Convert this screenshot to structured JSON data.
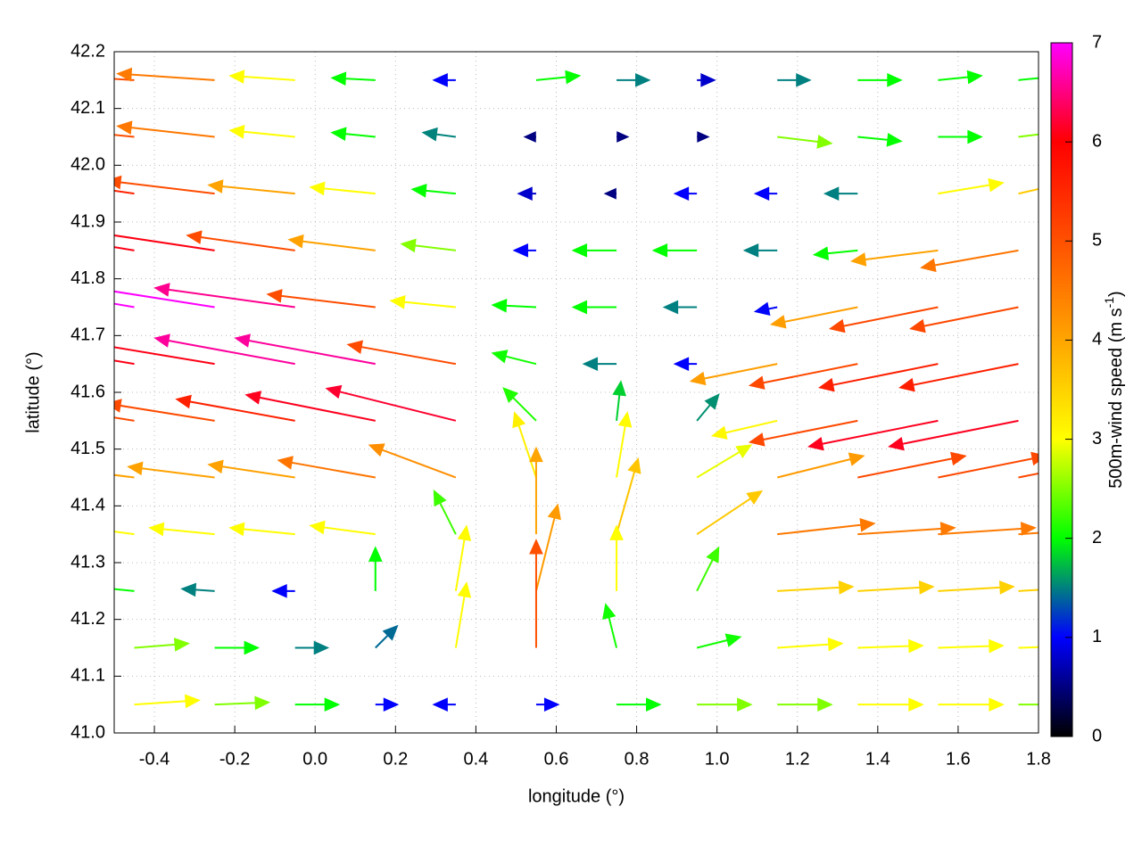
{
  "chart_data": {
    "type": "quiver",
    "xlabel": "longitude (°)",
    "ylabel": "latitude (°)",
    "xlim": [
      -0.5,
      1.8
    ],
    "ylim": [
      41.0,
      42.2
    ],
    "xticks": [
      -0.4,
      -0.2,
      {
        "value": 0,
        "label": "0.0"
      },
      0.2,
      0.4,
      0.6,
      0.8,
      {
        "value": 1,
        "label": "1.0"
      },
      1.2,
      1.4,
      1.6,
      1.8
    ],
    "yticks": [
      {
        "value": 41,
        "label": "41.0"
      },
      41.1,
      41.2,
      41.3,
      41.4,
      41.5,
      41.6,
      41.7,
      41.8,
      41.9,
      {
        "value": 42,
        "label": "42.0"
      },
      42.1,
      42.2
    ],
    "grid": true,
    "x": [
      -0.45,
      -0.25,
      -0.05,
      0.15,
      0.35,
      0.55,
      0.75,
      0.95,
      1.15,
      1.35,
      1.55,
      1.75
    ],
    "y": [
      42.15,
      42.05,
      41.95,
      41.85,
      41.75,
      41.65,
      41.55,
      41.45,
      41.35,
      41.25,
      41.15,
      41.05
    ],
    "u": [
      [
        -5,
        -4.5,
        -3,
        -2,
        -1,
        2,
        1.5,
        0.8,
        1.5,
        2,
        2,
        2
      ],
      [
        -5,
        -4.5,
        -3,
        -2,
        -1.5,
        -0.5,
        0.5,
        0.5,
        2.5,
        2,
        2,
        2.5
      ],
      [
        -5.5,
        -5,
        -4,
        -3,
        -2,
        -0.8,
        -0.5,
        -1,
        -1,
        -1.5,
        3,
        3.5
      ],
      [
        -6,
        -6,
        -5,
        -4,
        -2.5,
        -1,
        -2,
        -2,
        -1.5,
        -2,
        -4,
        -4.5
      ],
      [
        -7,
        -7,
        -6.5,
        -5,
        -3,
        -2,
        -2,
        -1.5,
        -1,
        -4,
        -5,
        -5
      ],
      [
        -6,
        -6,
        -6.5,
        -6.5,
        -5,
        -2,
        -1.5,
        -1,
        -4,
        -5,
        -5.5,
        -5.5
      ],
      [
        -5,
        -5,
        -5.5,
        -6,
        -6,
        -1.5,
        0.2,
        1,
        -3,
        -5,
        -6,
        -6
      ],
      [
        -4,
        -4,
        -4,
        -4.5,
        -4,
        -1,
        0.5,
        2.5,
        4,
        5,
        5,
        5
      ],
      [
        -3,
        -3,
        -3,
        -3,
        -1,
        0,
        1,
        3,
        4.5,
        4.5,
        4.5,
        4.5
      ],
      [
        -2,
        -1.5,
        -1,
        0,
        0.5,
        1,
        0,
        1,
        3.5,
        3.5,
        3.5,
        3.5
      ],
      [
        2.5,
        2,
        1.5,
        1,
        0.5,
        0,
        -0.5,
        2,
        3,
        3,
        3,
        3
      ],
      [
        3,
        2.5,
        2,
        1,
        -1,
        1,
        2,
        2.5,
        2.5,
        3,
        3,
        2.5
      ]
    ],
    "v": [
      [
        0.3,
        0.3,
        0.2,
        0.1,
        0,
        0.2,
        0,
        0,
        0,
        0,
        0.2,
        0.2
      ],
      [
        0.5,
        0.5,
        0.3,
        0.2,
        0.2,
        0,
        0,
        0,
        -0.3,
        -0.2,
        0,
        0.3
      ],
      [
        0.8,
        0.6,
        0.4,
        0.3,
        0.2,
        0,
        0,
        0,
        0,
        0,
        0.5,
        0.8
      ],
      [
        1,
        0.9,
        0.7,
        0.5,
        0.3,
        0,
        0,
        0,
        0,
        -0.2,
        -0.5,
        -0.8
      ],
      [
        1.2,
        1.1,
        0.9,
        0.6,
        0.3,
        0.1,
        0,
        0,
        -0.2,
        -0.8,
        -1,
        -1
      ],
      [
        1,
        1,
        1.2,
        1.2,
        0.9,
        0.5,
        0,
        0,
        -0.8,
        -1,
        -1.1,
        -1.1
      ],
      [
        0.8,
        0.8,
        1,
        1.2,
        1.5,
        1.5,
        1.8,
        1.2,
        -0.7,
        -1,
        -1.2,
        -1.2
      ],
      [
        0.5,
        0.5,
        0.6,
        0.8,
        1.5,
        3,
        3,
        1.5,
        1,
        1,
        1,
        1
      ],
      [
        0.4,
        0.3,
        0.3,
        0.4,
        2,
        4,
        3.5,
        2,
        0.5,
        0.3,
        0.3,
        0.3
      ],
      [
        0.2,
        0.1,
        0,
        2,
        3,
        4,
        3,
        2,
        0.2,
        0.2,
        0.2,
        0.2
      ],
      [
        0.2,
        0,
        0,
        1,
        3,
        5,
        2,
        0.5,
        0.2,
        0.1,
        0.1,
        0.1
      ],
      [
        0.2,
        0.1,
        0,
        0,
        0,
        0,
        0,
        0,
        0,
        0,
        0,
        0
      ]
    ],
    "colorbar": {
      "label": "500m-wind speed (m s",
      "label_sup": "-1",
      "label_end": ")",
      "clim": [
        0,
        7
      ],
      "ticks": [
        0,
        1,
        2,
        3,
        4,
        5,
        6,
        7
      ],
      "colors": [
        "#000000",
        "#0000ff",
        "#00ff00",
        "#ffff00",
        "#ffa500",
        "#ff5000",
        "#ff0000",
        "#ff00ff"
      ]
    }
  }
}
